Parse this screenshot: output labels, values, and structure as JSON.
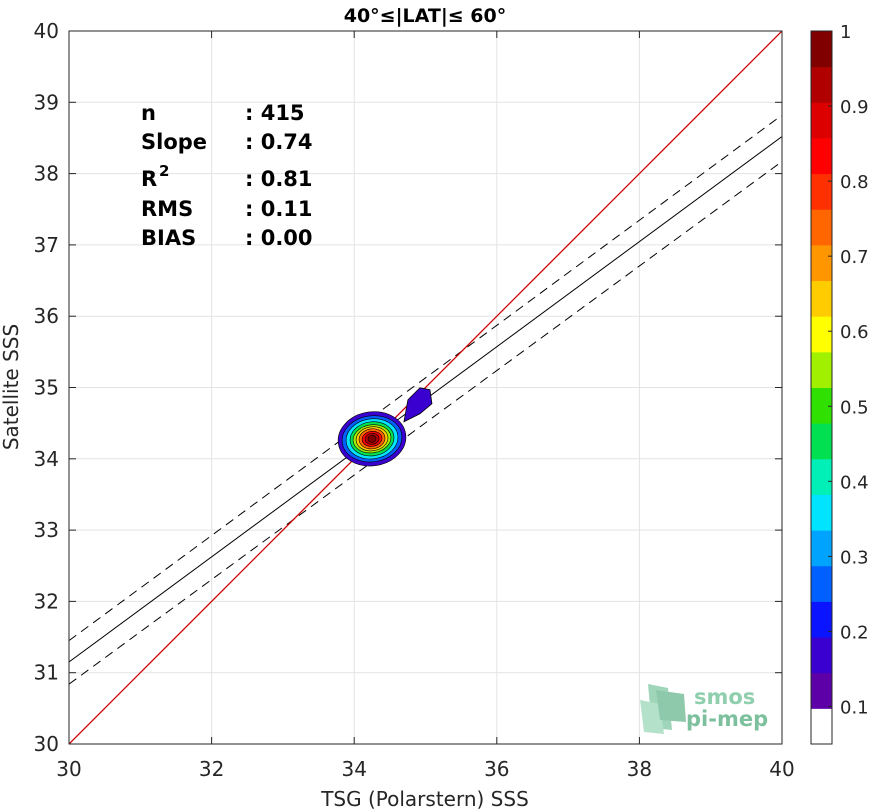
{
  "chart_data": {
    "type": "scatter",
    "title": "40°≤|LAT|≤ 60°",
    "xlabel": "TSG (Polarstern) SSS",
    "ylabel": "Satellite SSS",
    "xlim": [
      30,
      40
    ],
    "ylim": [
      30,
      40
    ],
    "xticks": [
      "30",
      "32",
      "34",
      "36",
      "38",
      "40"
    ],
    "yticks": [
      "30",
      "31",
      "32",
      "33",
      "34",
      "35",
      "36",
      "37",
      "38",
      "39",
      "40"
    ],
    "grid": true,
    "stats": [
      {
        "label": "n",
        "value": ": 415"
      },
      {
        "label": "Slope",
        "value": ": 0.74"
      },
      {
        "label": "R",
        "sup": "2",
        "value": ": 0.81"
      },
      {
        "label": "RMS",
        "value": ": 0.11"
      },
      {
        "label": "BIAS",
        "value": ": 0.00"
      }
    ],
    "identity_line": {
      "x": [
        30,
        40
      ],
      "y": [
        30,
        40
      ],
      "color": "#cc0000"
    },
    "fit_line": {
      "x": [
        30,
        40
      ],
      "y": [
        31.15,
        38.52
      ]
    },
    "fit_upper": {
      "x": [
        30,
        40
      ],
      "y": [
        31.45,
        38.82
      ]
    },
    "fit_lower": {
      "x": [
        30,
        40
      ],
      "y": [
        30.84,
        38.17
      ]
    },
    "density": {
      "center": [
        34.25,
        34.28
      ],
      "secondary": [
        34.95,
        34.8
      ],
      "peak": 1.0
    },
    "colorbar": {
      "ticks": [
        "0.1",
        "0.2",
        "0.3",
        "0.4",
        "0.5",
        "0.6",
        "0.7",
        "0.8",
        "0.9",
        "1"
      ],
      "colors": [
        "#ffffff",
        "#5e00a8",
        "#3a00d0",
        "#0a14ff",
        "#0060ff",
        "#00a4ff",
        "#00e4ff",
        "#00f0b8",
        "#00e050",
        "#30e000",
        "#a0f000",
        "#ffff00",
        "#ffcc00",
        "#ff9600",
        "#ff6600",
        "#ff3000",
        "#ff0000",
        "#dd0000",
        "#b00000",
        "#800000"
      ]
    },
    "watermark": {
      "line1": "smos",
      "line2": "pi-mep"
    }
  }
}
